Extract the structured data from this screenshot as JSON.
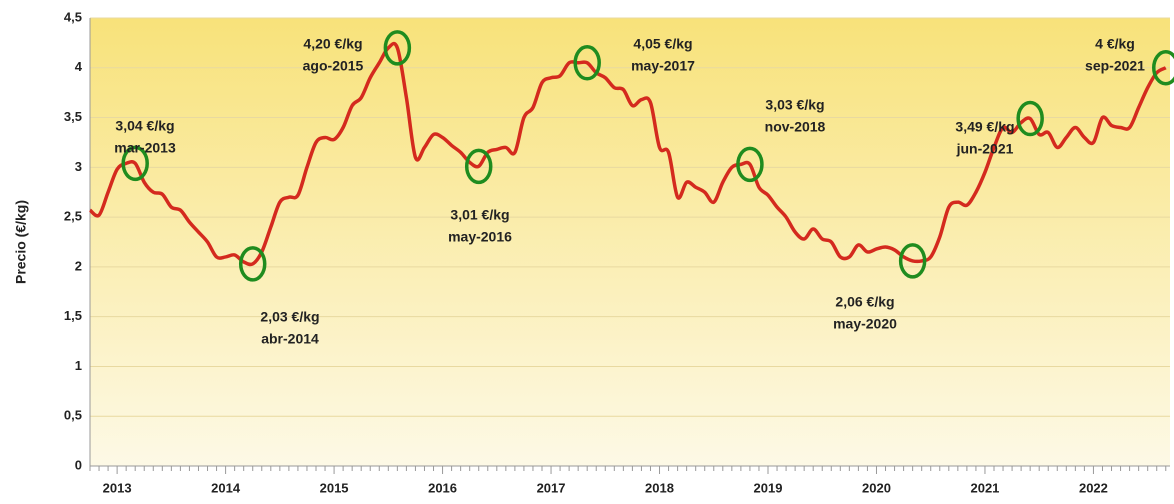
{
  "chart_data": {
    "type": "line",
    "y_label": "Precio (€/kg)",
    "categories": [
      null,
      null,
      null,
      "2013",
      null,
      null,
      null,
      null,
      null,
      null,
      null,
      null,
      null,
      null,
      null,
      "2014",
      null,
      null,
      null,
      null,
      null,
      null,
      null,
      null,
      null,
      null,
      null,
      "2015",
      null,
      null,
      null,
      null,
      null,
      null,
      null,
      null,
      null,
      null,
      null,
      "2016",
      null,
      null,
      null,
      null,
      null,
      null,
      null,
      null,
      null,
      null,
      null,
      "2017",
      null,
      null,
      null,
      null,
      null,
      null,
      null,
      null,
      null,
      null,
      null,
      "2018",
      null,
      null,
      null,
      null,
      null,
      null,
      null,
      null,
      null,
      null,
      null,
      "2019",
      null,
      null,
      null,
      null,
      null,
      null,
      null,
      null,
      null,
      null,
      null,
      "2020",
      null,
      null,
      null,
      null,
      null,
      null,
      null,
      null,
      null,
      null,
      null,
      "2021",
      null,
      null,
      null,
      null,
      null,
      null,
      null,
      null,
      null,
      null,
      null,
      "2022",
      null,
      null,
      null,
      null,
      null,
      null,
      null,
      null
    ],
    "series": [
      {
        "name": "Precio",
        "color": "#d42a1e",
        "values": [
          2.57,
          2.52,
          2.75,
          2.98,
          3.04,
          3.04,
          2.85,
          2.75,
          2.73,
          2.6,
          2.57,
          2.45,
          2.35,
          2.25,
          2.1,
          2.1,
          2.12,
          2.05,
          2.03,
          2.15,
          2.4,
          2.65,
          2.7,
          2.72,
          3.0,
          3.25,
          3.3,
          3.28,
          3.4,
          3.62,
          3.7,
          3.9,
          4.05,
          4.2,
          4.2,
          3.7,
          3.1,
          3.2,
          3.33,
          3.3,
          3.22,
          3.15,
          3.05,
          3.01,
          3.15,
          3.18,
          3.2,
          3.15,
          3.5,
          3.6,
          3.85,
          3.9,
          3.92,
          4.05,
          4.05,
          4.05,
          3.95,
          3.9,
          3.8,
          3.78,
          3.62,
          3.68,
          3.65,
          3.2,
          3.15,
          2.7,
          2.85,
          2.8,
          2.75,
          2.65,
          2.85,
          3.0,
          3.03,
          3.03,
          2.8,
          2.72,
          2.6,
          2.5,
          2.35,
          2.28,
          2.38,
          2.28,
          2.25,
          2.1,
          2.1,
          2.22,
          2.15,
          2.18,
          2.2,
          2.17,
          2.1,
          2.06,
          2.06,
          2.1,
          2.3,
          2.6,
          2.65,
          2.62,
          2.75,
          2.95,
          3.2,
          3.4,
          3.35,
          3.45,
          3.49,
          3.33,
          3.35,
          3.2,
          3.3,
          3.4,
          3.3,
          3.25,
          3.5,
          3.42,
          3.4,
          3.4,
          3.6,
          3.8,
          3.95,
          4.0
        ]
      }
    ],
    "ylim": [
      0,
      4.5
    ],
    "yticks": [
      0,
      {
        "value": 0.5,
        "label": "0,5"
      },
      1,
      {
        "value": 1.5,
        "label": "1,5"
      },
      2,
      {
        "value": 2.5,
        "label": "2,5"
      },
      3,
      {
        "value": 3.5,
        "label": "3,5"
      },
      4,
      {
        "value": 4.5,
        "label": "4,5"
      }
    ],
    "grid": true,
    "highlight_color": "#1f8c1f",
    "annotations": [
      {
        "price": "3,04 €/kg",
        "date": "mar-2013"
      },
      {
        "price": "2,03 €/kg",
        "date": "abr-2014"
      },
      {
        "price": "4,20 €/kg",
        "date": "ago-2015"
      },
      {
        "price": "3,01 €/kg",
        "date": "may-2016"
      },
      {
        "price": "4,05 €/kg",
        "date": "may-2017"
      },
      {
        "price": "3,03 €/kg",
        "date": "nov-2018"
      },
      {
        "price": "2,06 €/kg",
        "date": "may-2020"
      },
      {
        "price": "3,49 €/kg",
        "date": "jun-2021"
      },
      {
        "price": "4 €/kg",
        "date": "sep-2021"
      }
    ]
  }
}
